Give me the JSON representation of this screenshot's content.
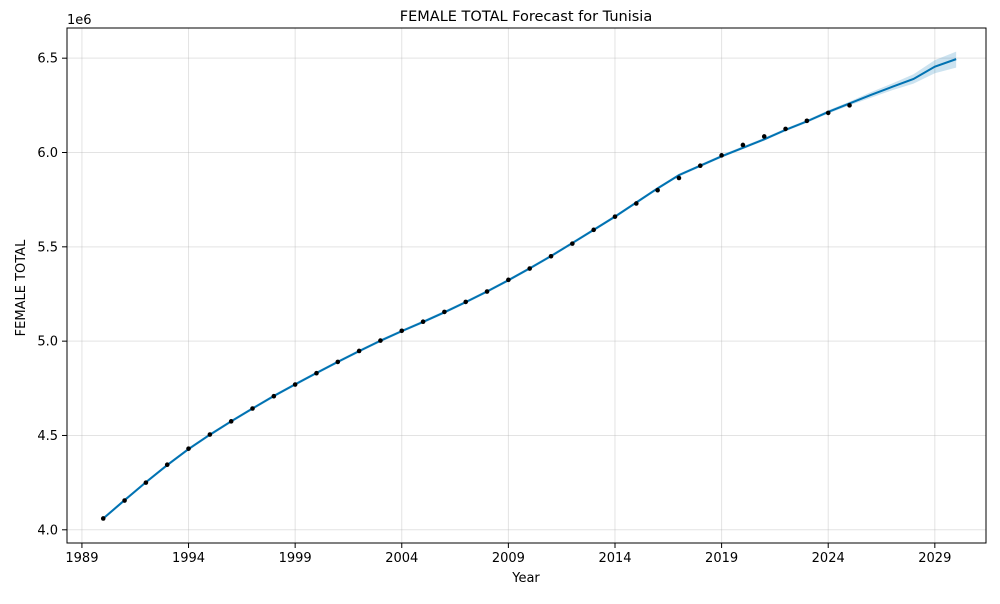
{
  "chart_data": {
    "type": "line",
    "title": "FEMALE TOTAL Forecast for Tunisia",
    "xlabel": "Year",
    "ylabel": "FEMALE TOTAL",
    "y_offset_label": "1e6",
    "xlim": [
      1988.3,
      2031.4
    ],
    "ylim": [
      3.93,
      6.66
    ],
    "x_ticks": [
      1989,
      1994,
      1999,
      2004,
      2009,
      2014,
      2019,
      2024,
      2029
    ],
    "x_tick_labels": [
      "1989",
      "1994",
      "1999",
      "2004",
      "2009",
      "2014",
      "2019",
      "2024",
      "2029"
    ],
    "y_ticks": [
      4.0,
      4.5,
      5.0,
      5.5,
      6.0,
      6.5
    ],
    "y_tick_labels": [
      "4.0",
      "4.5",
      "5.0",
      "5.5",
      "6.0",
      "6.5"
    ],
    "grid": true,
    "colors": {
      "forecast": "#0072B2",
      "band": "#0072B2",
      "observed": "#000000"
    },
    "series": [
      {
        "role": "observed",
        "x": [
          1990,
          1991,
          1992,
          1993,
          1994,
          1995,
          1996,
          1997,
          1998,
          1999,
          2000,
          2001,
          2002,
          2003,
          2004,
          2005,
          2006,
          2007,
          2008,
          2009,
          2010,
          2011,
          2012,
          2013,
          2014,
          2015,
          2016,
          2017,
          2018,
          2019,
          2020,
          2021,
          2022,
          2023,
          2024,
          2025
        ],
        "values": [
          4.06,
          4.155,
          4.25,
          4.345,
          4.43,
          4.505,
          4.575,
          4.643,
          4.708,
          4.77,
          4.83,
          4.89,
          4.948,
          5.003,
          5.055,
          5.103,
          5.155,
          5.208,
          5.263,
          5.325,
          5.385,
          5.45,
          5.517,
          5.59,
          5.66,
          5.73,
          5.8,
          5.865,
          5.93,
          5.985,
          6.04,
          6.085,
          6.125,
          6.168,
          6.21,
          6.25
        ]
      },
      {
        "role": "forecast",
        "x": [
          1990,
          1991,
          1992,
          1993,
          1994,
          1995,
          1996,
          1997,
          1998,
          1999,
          2000,
          2001,
          2002,
          2003,
          2004,
          2005,
          2006,
          2007,
          2008,
          2009,
          2010,
          2011,
          2012,
          2013,
          2014,
          2015,
          2016,
          2017,
          2018,
          2019,
          2020,
          2021,
          2022,
          2023,
          2024,
          2025,
          2026,
          2027,
          2028,
          2029,
          2030
        ],
        "values": [
          4.06,
          4.157,
          4.252,
          4.343,
          4.428,
          4.504,
          4.575,
          4.643,
          4.709,
          4.771,
          4.831,
          4.89,
          4.947,
          5.002,
          5.053,
          5.102,
          5.153,
          5.207,
          5.263,
          5.323,
          5.386,
          5.451,
          5.52,
          5.59,
          5.66,
          5.735,
          5.81,
          5.88,
          5.93,
          5.98,
          6.025,
          6.07,
          6.12,
          6.165,
          6.215,
          6.26,
          6.305,
          6.348,
          6.39,
          6.455,
          6.495
        ],
        "lower": [
          4.052,
          4.149,
          4.244,
          4.335,
          4.42,
          4.496,
          4.567,
          4.635,
          4.701,
          4.763,
          4.823,
          4.882,
          4.939,
          4.994,
          5.045,
          5.094,
          5.145,
          5.199,
          5.255,
          5.315,
          5.378,
          5.443,
          5.512,
          5.582,
          5.652,
          5.727,
          5.802,
          5.872,
          5.922,
          5.972,
          6.017,
          6.062,
          6.112,
          6.157,
          6.206,
          6.25,
          6.29,
          6.33,
          6.365,
          6.42,
          6.45
        ],
        "upper": [
          4.068,
          4.165,
          4.26,
          4.351,
          4.436,
          4.512,
          4.583,
          4.651,
          4.717,
          4.779,
          4.839,
          4.898,
          4.955,
          5.01,
          5.061,
          5.11,
          5.161,
          5.215,
          5.271,
          5.331,
          5.394,
          5.459,
          5.528,
          5.598,
          5.668,
          5.743,
          5.818,
          5.888,
          5.938,
          5.988,
          6.033,
          6.078,
          6.128,
          6.173,
          6.224,
          6.27,
          6.32,
          6.366,
          6.415,
          6.49,
          6.535
        ]
      }
    ]
  }
}
